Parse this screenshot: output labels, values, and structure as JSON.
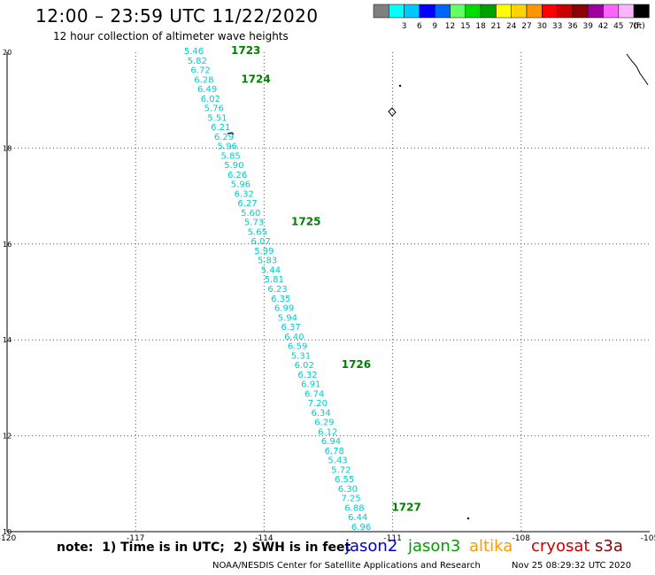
{
  "header": {
    "title": "12:00 – 23:59 UTC 11/22/2020",
    "subtitle": "12 hour collection of altimeter wave heights"
  },
  "legend": {
    "unit": "(ft)",
    "bins": [
      {
        "color": "#7f7f7f",
        "label": ""
      },
      {
        "color": "#00ffff",
        "label": "3"
      },
      {
        "color": "#00c8ff",
        "label": "6"
      },
      {
        "color": "#0000ff",
        "label": "9"
      },
      {
        "color": "#0064ff",
        "label": "12"
      },
      {
        "color": "#64ff64",
        "label": "15"
      },
      {
        "color": "#00dc00",
        "label": "18"
      },
      {
        "color": "#00a000",
        "label": "21"
      },
      {
        "color": "#ffff00",
        "label": "24"
      },
      {
        "color": "#ffd200",
        "label": "27"
      },
      {
        "color": "#ff9600",
        "label": "30"
      },
      {
        "color": "#ff0000",
        "label": "33"
      },
      {
        "color": "#c80000",
        "label": "36"
      },
      {
        "color": "#8c0000",
        "label": "39"
      },
      {
        "color": "#a000a0",
        "label": "42"
      },
      {
        "color": "#ff64ff",
        "label": "45"
      },
      {
        "color": "#ffb4ff",
        "label": "70"
      },
      {
        "color": "#000000",
        "label": ""
      }
    ]
  },
  "map": {
    "longitude_labels": [
      "-120",
      "-117",
      "-114",
      "-111",
      "-108",
      "-105"
    ],
    "latitude_labels": [
      "20",
      "18",
      "16",
      "14",
      "12",
      "10"
    ],
    "lon_range": [
      -120,
      -105
    ],
    "lat_range": [
      10,
      20
    ],
    "wave_heights": [
      "5.46",
      "5.82",
      "6.72",
      "6.28",
      "6.49",
      "6.02",
      "5.76",
      "5.51",
      "6.21",
      "6.29",
      "5.96",
      "5.85",
      "5.90",
      "6.26",
      "5.96",
      "6.32",
      "6.27",
      "5.60",
      "5.73",
      "5.65",
      "6.07",
      "5.99",
      "5.83",
      "5.44",
      "5.81",
      "6.23",
      "6.35",
      "6.99",
      "5.94",
      "6.37",
      "6.40",
      "6.59",
      "5.31",
      "6.02",
      "6.32",
      "6.91",
      "6.74",
      "7.20",
      "6.34",
      "6.29",
      "6.12",
      "6.94",
      "6.78",
      "5.43",
      "5.72",
      "6.55",
      "6.30",
      "7.25",
      "6.88",
      "6.44",
      "6.96"
    ],
    "wave_color": "#00cccc",
    "track_labels": [
      {
        "text": "1723",
        "after_index": 0
      },
      {
        "text": "1724",
        "after_index": 3
      },
      {
        "text": "1725",
        "after_index": 18
      },
      {
        "text": "1726",
        "after_index": 33
      },
      {
        "text": "1727",
        "after_index": 48
      }
    ],
    "track_label_color": "#008000"
  },
  "note": "note:  1) Time is in UTC;  2) SWH is in feet",
  "satellites": [
    {
      "name": "jason2",
      "color": "#0000cc"
    },
    {
      "name": "jason3",
      "color": "#00a000"
    },
    {
      "name": "altika",
      "color": "#ff9900"
    },
    {
      "name": "cryosat",
      "color": "#cc0000"
    },
    {
      "name": "s3a",
      "color": "#8b0000"
    }
  ],
  "footer": {
    "credit": "NOAA/NESDIS Center for Satellite Applications and Research",
    "timestamp": "Nov 25 08:29:32 UTC 2020"
  }
}
